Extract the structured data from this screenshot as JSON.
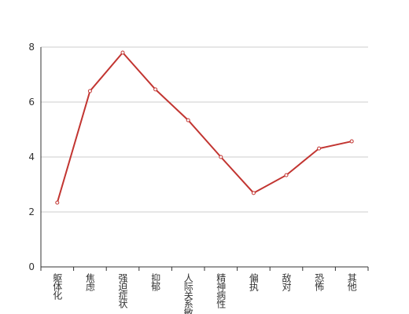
{
  "chart_data": {
    "type": "line",
    "categories": [
      "躯体化",
      "焦虑",
      "强迫症状",
      "抑郁",
      "人际关系敏感",
      "精神病性",
      "偏执",
      "敌对",
      "恐怖",
      "其他"
    ],
    "values": [
      2.34,
      6.4,
      7.8,
      6.46,
      5.34,
      4.0,
      2.69,
      3.34,
      4.31,
      4.57
    ],
    "color": "#c23531",
    "ylim": [
      0,
      8
    ],
    "yticks": [
      0,
      2,
      4,
      6,
      8
    ],
    "grid": true
  }
}
